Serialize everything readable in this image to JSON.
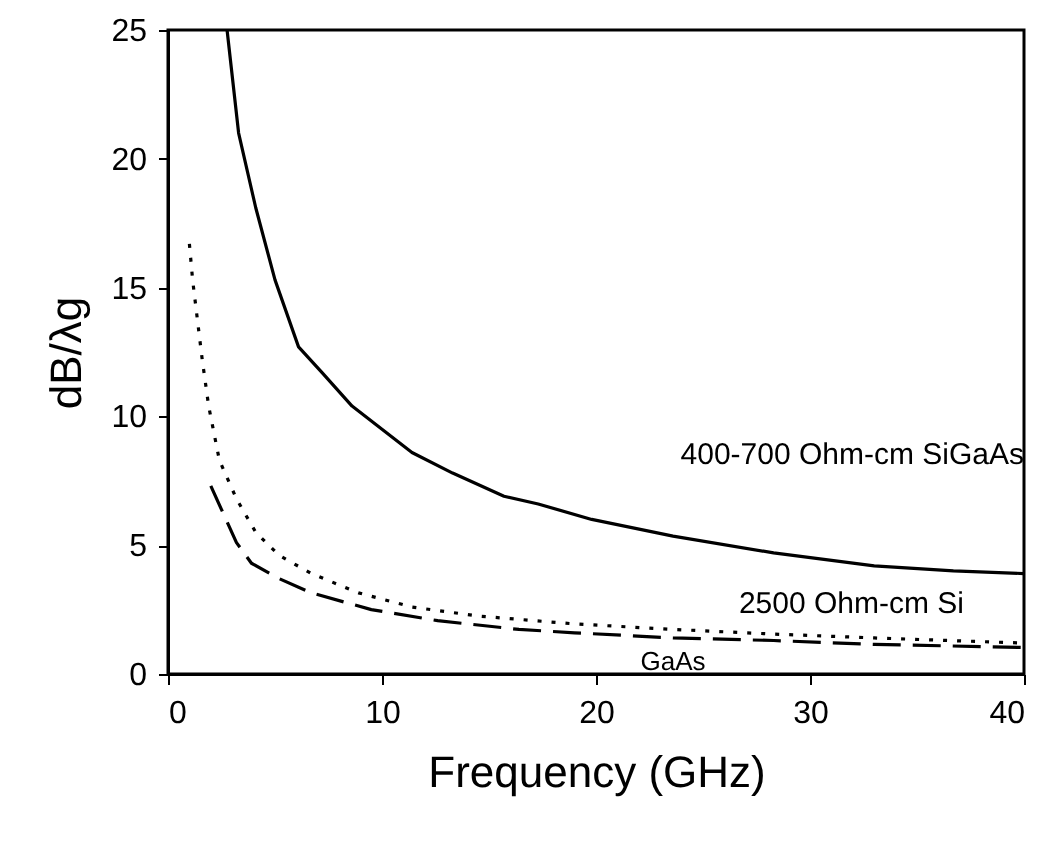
{
  "chart_data": {
    "type": "line",
    "xlabel": "Frequency (GHz)",
    "ylabel": "dB/λg",
    "xlim": [
      0,
      40
    ],
    "ylim": [
      0,
      25
    ],
    "xticks": [
      0,
      10,
      20,
      30,
      40
    ],
    "yticks": [
      0,
      5,
      10,
      15,
      20,
      25
    ],
    "grid": false,
    "marker": "none",
    "series": [
      {
        "name": "400-700 Ohm-cm SiGaAs",
        "color": "#000000",
        "line_style": "solid",
        "x": [
          2.76,
          3.3,
          4.1,
          5.0,
          6.1,
          7.2,
          8.6,
          10,
          11.4,
          13.3,
          15.7,
          17.3,
          19.8,
          23.6,
          28.3,
          33,
          36.7,
          40
        ],
        "values": [
          25,
          21.0,
          18.1,
          15.3,
          12.7,
          11.7,
          10.4,
          9.5,
          8.6,
          7.8,
          6.9,
          6.6,
          6.0,
          5.35,
          4.7,
          4.2,
          4.0,
          3.9
        ]
      },
      {
        "name": "2500 Ohm-cm Si",
        "color": "#000000",
        "line_style": "dotted",
        "x": [
          1.0,
          1.15,
          1.6,
          1.9,
          2.4,
          3.2,
          4.1,
          5.2,
          6.7,
          8.9,
          11.4,
          14.5,
          18.9,
          23.6,
          28.3,
          33,
          40
        ],
        "values": [
          16.7,
          15.3,
          12.2,
          10.4,
          8.3,
          6.8,
          5.5,
          4.6,
          3.9,
          3.15,
          2.6,
          2.25,
          1.95,
          1.73,
          1.55,
          1.4,
          1.2
        ]
      },
      {
        "name": "GaAs",
        "color": "#000000",
        "line_style": "dashed",
        "x": [
          2.0,
          3.2,
          3.9,
          5.2,
          6.7,
          9.5,
          12.6,
          16.4,
          19,
          23.6,
          28.3,
          33,
          40
        ],
        "values": [
          7.3,
          5.1,
          4.3,
          3.7,
          3.15,
          2.5,
          2.07,
          1.73,
          1.6,
          1.4,
          1.3,
          1.15,
          1.03
        ]
      }
    ]
  }
}
